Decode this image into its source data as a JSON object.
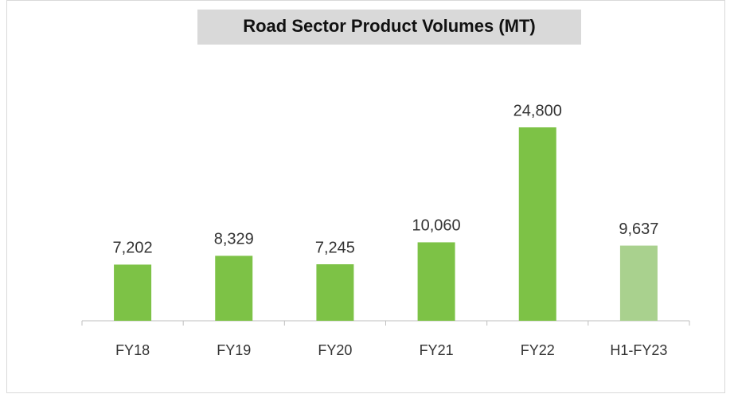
{
  "chart_data": {
    "type": "bar",
    "title": "Road Sector Product Volumes (MT)",
    "categories": [
      "FY18",
      "FY19",
      "FY20",
      "FY21",
      "FY22",
      "H1-FY23"
    ],
    "values": [
      7202,
      8329,
      7245,
      10060,
      24800,
      9637
    ],
    "value_labels": [
      "7,202",
      "8,329",
      "7,245",
      "10,060",
      "24,800",
      "9,637"
    ],
    "colors": [
      "#7dc246",
      "#7dc246",
      "#7dc246",
      "#7dc246",
      "#7dc246",
      "#a9d18e"
    ]
  }
}
